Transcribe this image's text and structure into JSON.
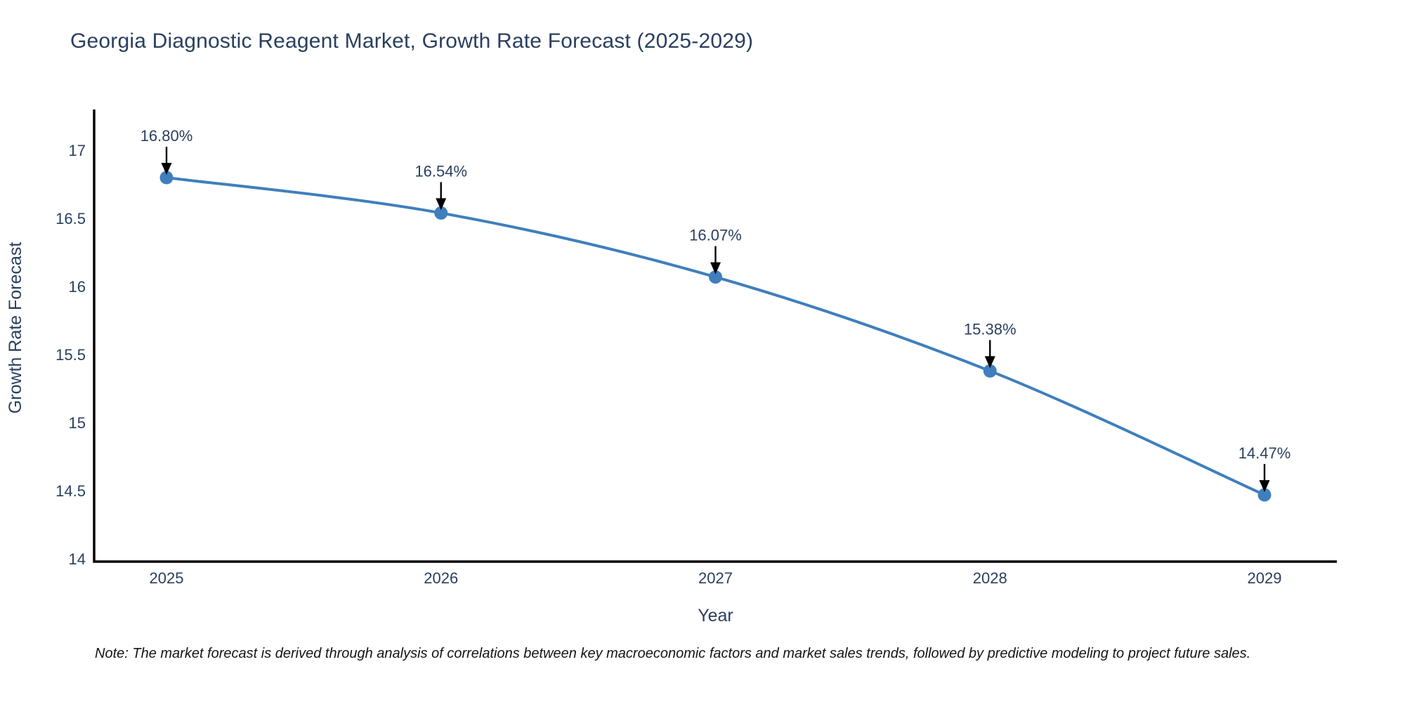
{
  "note": "Note: The market forecast is derived through analysis of correlations between key macroeconomic factors and market sales trends, followed by predictive modeling to project future sales.",
  "chart_data": {
    "type": "line",
    "title": "Georgia Diagnostic Reagent Market, Growth Rate Forecast (2025-2029)",
    "xlabel": "Year",
    "ylabel": "Growth Rate Forecast",
    "categories": [
      "2025",
      "2026",
      "2027",
      "2028",
      "2029"
    ],
    "values": [
      16.8,
      16.54,
      16.07,
      15.38,
      14.47
    ],
    "point_labels": [
      "16.80%",
      "16.54%",
      "16.07%",
      "15.38%",
      "14.47%"
    ],
    "ylim": [
      13.98,
      17.3
    ],
    "yticks": [
      14,
      14.5,
      15,
      15.5,
      16,
      16.5,
      17
    ],
    "ytick_labels": [
      "14",
      "14.5",
      "15",
      "15.5",
      "16",
      "16.5",
      "17"
    ],
    "grid": false,
    "legend_position": "none",
    "line_shape": "spline",
    "colors": {
      "line": "#3f7fbd",
      "marker": "#3f7fbd",
      "text": "#2a3f5f",
      "axis": "#000000",
      "arrow": "#000000",
      "background": "#ffffff"
    }
  }
}
